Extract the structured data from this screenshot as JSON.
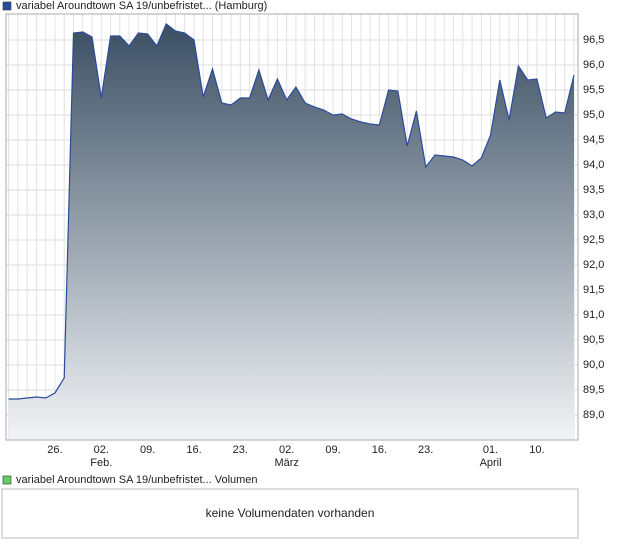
{
  "chart_data": {
    "type": "area",
    "series": [
      {
        "name": "variabel Aroundtown SA 19/unbefristet... (Hamburg)",
        "color": "#2b4b9b",
        "values": [
          89.32,
          89.32,
          89.34,
          89.36,
          89.34,
          89.44,
          89.74,
          96.64,
          96.66,
          96.56,
          95.34,
          96.58,
          96.58,
          96.38,
          96.64,
          96.62,
          96.38,
          96.82,
          96.68,
          96.64,
          96.5,
          95.36,
          95.92,
          95.24,
          95.2,
          95.34,
          95.34,
          95.9,
          95.3,
          95.72,
          95.3,
          95.56,
          95.24,
          95.16,
          95.1,
          95.0,
          95.02,
          94.92,
          94.86,
          94.82,
          94.8,
          95.5,
          95.48,
          94.38,
          95.08,
          93.96,
          94.2,
          94.18,
          94.16,
          94.1,
          93.98,
          94.14,
          94.6,
          95.7,
          94.9,
          95.98,
          95.7,
          95.72,
          94.94,
          95.06,
          95.04,
          95.8
        ]
      }
    ],
    "categories": [
      null,
      null,
      null,
      null,
      null,
      "26.",
      null,
      null,
      null,
      null,
      "02.",
      null,
      null,
      null,
      null,
      "09.",
      null,
      null,
      null,
      null,
      "16.",
      null,
      null,
      null,
      null,
      "23.",
      null,
      null,
      null,
      null,
      "02.",
      null,
      null,
      null,
      null,
      "09.",
      null,
      null,
      null,
      null,
      "16.",
      null,
      null,
      null,
      null,
      "23.",
      null,
      null,
      null,
      null,
      null,
      null,
      "01.",
      null,
      null,
      null,
      null,
      "10.",
      null,
      null,
      null,
      null
    ],
    "months": [
      null,
      null,
      null,
      null,
      null,
      null,
      null,
      null,
      null,
      null,
      "Feb.",
      null,
      null,
      null,
      null,
      null,
      null,
      null,
      null,
      null,
      null,
      null,
      null,
      null,
      null,
      null,
      null,
      null,
      null,
      null,
      "März",
      null,
      null,
      null,
      null,
      null,
      null,
      null,
      null,
      null,
      null,
      null,
      null,
      null,
      null,
      null,
      null,
      null,
      null,
      null,
      null,
      null,
      "April",
      null,
      null,
      null,
      null,
      null,
      null,
      null,
      null,
      null
    ],
    "ylim": [
      88.5,
      97.02
    ],
    "yticks": [
      {
        "value": 89.0,
        "label": "89,0"
      },
      {
        "value": 89.5,
        "label": "89,5"
      },
      {
        "value": 90.0,
        "label": "90,0"
      },
      {
        "value": 90.5,
        "label": "90,5"
      },
      {
        "value": 91.0,
        "label": "91,0"
      },
      {
        "value": 91.5,
        "label": "91,5"
      },
      {
        "value": 92.0,
        "label": "92,0"
      },
      {
        "value": 92.5,
        "label": "92,5"
      },
      {
        "value": 93.0,
        "label": "93,0"
      },
      {
        "value": 93.5,
        "label": "93,5"
      },
      {
        "value": 94.0,
        "label": "94,0"
      },
      {
        "value": 94.5,
        "label": "94,5"
      },
      {
        "value": 95.0,
        "label": "95,0"
      },
      {
        "value": 95.5,
        "label": "95,5"
      },
      {
        "value": 96.0,
        "label": "96,0"
      },
      {
        "value": 96.5,
        "label": "96,5"
      }
    ],
    "grid": true
  },
  "volume_panel": {
    "legend": "variabel Aroundtown SA 19/unbefristet... Volumen",
    "color": "#66cc66",
    "message": "keine Volumendaten vorhanden"
  }
}
